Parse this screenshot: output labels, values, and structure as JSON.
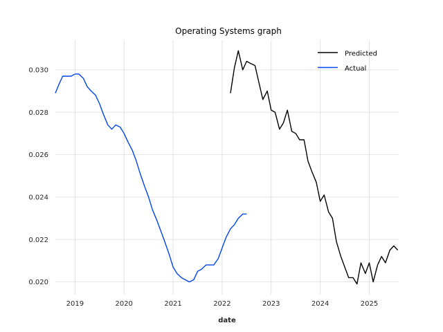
{
  "chart_data": {
    "type": "line",
    "title": "Operating Systems graph",
    "xlabel": "date",
    "ylabel": "",
    "xlim": [
      2018.6,
      2025.6
    ],
    "ylim": [
      0.0194,
      0.0314
    ],
    "x_ticks": [
      "2019",
      "2020",
      "2021",
      "2022",
      "2023",
      "2024",
      "2025"
    ],
    "y_ticks": [
      "0.020",
      "0.022",
      "0.024",
      "0.026",
      "0.028",
      "0.030"
    ],
    "grid": true,
    "legend_position": "top-right",
    "series": [
      {
        "name": "Predicted",
        "color": "#000000",
        "points": [
          [
            2022.17,
            0.0289
          ],
          [
            2022.25,
            0.0301
          ],
          [
            2022.33,
            0.0309
          ],
          [
            2022.42,
            0.03
          ],
          [
            2022.5,
            0.0304
          ],
          [
            2022.58,
            0.0303
          ],
          [
            2022.67,
            0.0302
          ],
          [
            2022.75,
            0.0294
          ],
          [
            2022.83,
            0.0286
          ],
          [
            2022.92,
            0.029
          ],
          [
            2023.0,
            0.0281
          ],
          [
            2023.08,
            0.028
          ],
          [
            2023.17,
            0.0272
          ],
          [
            2023.25,
            0.0275
          ],
          [
            2023.33,
            0.0281
          ],
          [
            2023.42,
            0.0271
          ],
          [
            2023.5,
            0.027
          ],
          [
            2023.58,
            0.0267
          ],
          [
            2023.67,
            0.0267
          ],
          [
            2023.75,
            0.0257
          ],
          [
            2023.83,
            0.0252
          ],
          [
            2023.92,
            0.0247
          ],
          [
            2024.0,
            0.0238
          ],
          [
            2024.08,
            0.0241
          ],
          [
            2024.17,
            0.0233
          ],
          [
            2024.25,
            0.023
          ],
          [
            2024.33,
            0.0219
          ],
          [
            2024.42,
            0.0212
          ],
          [
            2024.5,
            0.0207
          ],
          [
            2024.58,
            0.0202
          ],
          [
            2024.67,
            0.0202
          ],
          [
            2024.75,
            0.0199
          ],
          [
            2024.83,
            0.0209
          ],
          [
            2024.92,
            0.0204
          ],
          [
            2025.0,
            0.0209
          ],
          [
            2025.08,
            0.02
          ],
          [
            2025.17,
            0.0208
          ],
          [
            2025.25,
            0.0212
          ],
          [
            2025.33,
            0.0209
          ],
          [
            2025.42,
            0.0215
          ],
          [
            2025.5,
            0.0217
          ],
          [
            2025.58,
            0.0215
          ]
        ]
      },
      {
        "name": "Actual",
        "color": "#0044ee",
        "points": [
          [
            2018.6,
            0.0289
          ],
          [
            2018.67,
            0.0293
          ],
          [
            2018.75,
            0.0297
          ],
          [
            2018.83,
            0.0297
          ],
          [
            2018.92,
            0.0297
          ],
          [
            2019.0,
            0.0298
          ],
          [
            2019.08,
            0.0298
          ],
          [
            2019.17,
            0.0296
          ],
          [
            2019.25,
            0.0292
          ],
          [
            2019.33,
            0.029
          ],
          [
            2019.42,
            0.0288
          ],
          [
            2019.5,
            0.0284
          ],
          [
            2019.58,
            0.0279
          ],
          [
            2019.67,
            0.0274
          ],
          [
            2019.75,
            0.0272
          ],
          [
            2019.83,
            0.0274
          ],
          [
            2019.92,
            0.0273
          ],
          [
            2020.0,
            0.027
          ],
          [
            2020.08,
            0.0266
          ],
          [
            2020.17,
            0.0262
          ],
          [
            2020.25,
            0.0257
          ],
          [
            2020.33,
            0.0251
          ],
          [
            2020.42,
            0.0245
          ],
          [
            2020.5,
            0.024
          ],
          [
            2020.58,
            0.0234
          ],
          [
            2020.67,
            0.0229
          ],
          [
            2020.75,
            0.0224
          ],
          [
            2020.83,
            0.0219
          ],
          [
            2020.92,
            0.0213
          ],
          [
            2021.0,
            0.0207
          ],
          [
            2021.08,
            0.0204
          ],
          [
            2021.17,
            0.0202
          ],
          [
            2021.25,
            0.0201
          ],
          [
            2021.33,
            0.02
          ],
          [
            2021.42,
            0.0201
          ],
          [
            2021.5,
            0.0205
          ],
          [
            2021.58,
            0.0206
          ],
          [
            2021.67,
            0.0208
          ],
          [
            2021.75,
            0.0208
          ],
          [
            2021.83,
            0.0208
          ],
          [
            2021.92,
            0.0211
          ],
          [
            2022.0,
            0.0216
          ],
          [
            2022.08,
            0.0221
          ],
          [
            2022.17,
            0.0225
          ],
          [
            2022.25,
            0.0227
          ],
          [
            2022.33,
            0.023
          ],
          [
            2022.42,
            0.0232
          ],
          [
            2022.5,
            0.0232
          ]
        ]
      }
    ]
  }
}
